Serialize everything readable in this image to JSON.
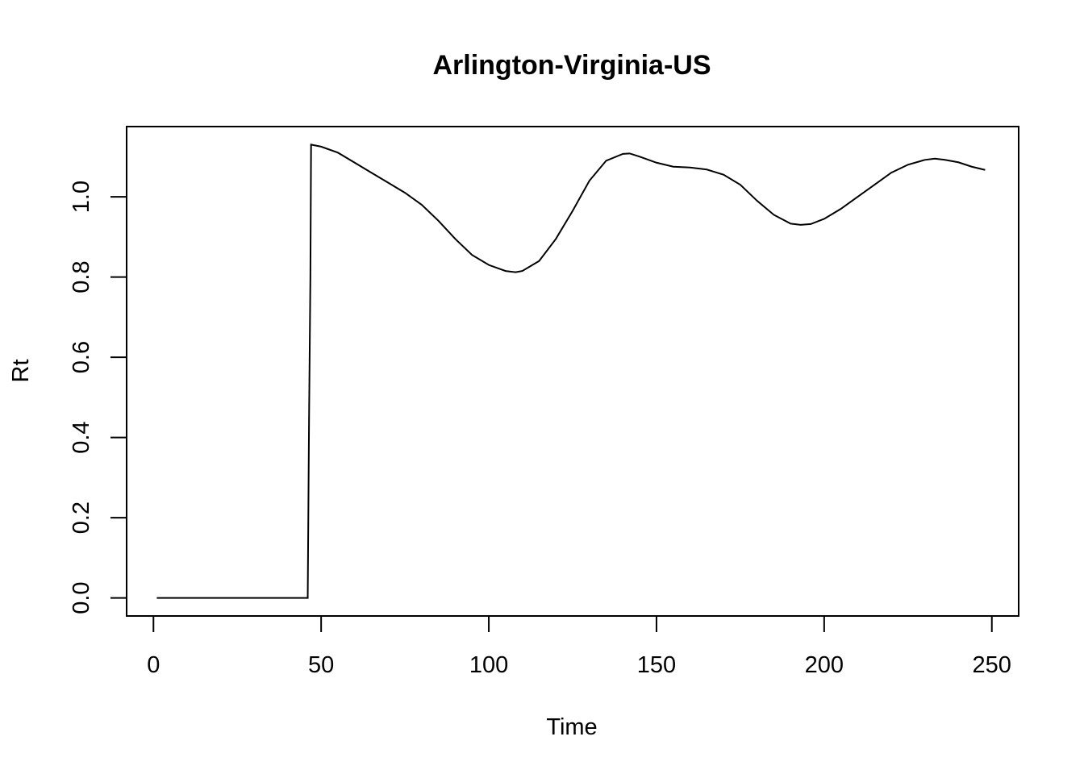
{
  "chart_data": {
    "type": "line",
    "title": "Arlington-Virginia-US",
    "xlabel": "Time",
    "ylabel": "Rt",
    "xlim": [
      -8,
      258
    ],
    "ylim": [
      -0.045,
      1.175
    ],
    "x_ticks": [
      0,
      50,
      100,
      150,
      200,
      250
    ],
    "x_tick_labels": [
      "0",
      "50",
      "100",
      "150",
      "200",
      "250"
    ],
    "y_ticks": [
      0,
      0.2,
      0.4,
      0.6,
      0.8,
      1.0
    ],
    "y_tick_labels": [
      "0.0",
      "0.2",
      "0.4",
      "0.6",
      "0.8",
      "1.0"
    ],
    "grid": false,
    "series": [
      {
        "points": [
          [
            1,
            0
          ],
          [
            10,
            0
          ],
          [
            20,
            0
          ],
          [
            30,
            0
          ],
          [
            40,
            0
          ],
          [
            46,
            0
          ],
          [
            46.4,
            0.45
          ],
          [
            46.8,
            0.8
          ],
          [
            47,
            1.13
          ],
          [
            50,
            1.125
          ],
          [
            55,
            1.11
          ],
          [
            60,
            1.085
          ],
          [
            65,
            1.06
          ],
          [
            70,
            1.035
          ],
          [
            75,
            1.01
          ],
          [
            80,
            0.98
          ],
          [
            85,
            0.94
          ],
          [
            90,
            0.895
          ],
          [
            95,
            0.855
          ],
          [
            100,
            0.83
          ],
          [
            105,
            0.815
          ],
          [
            108,
            0.812
          ],
          [
            110,
            0.815
          ],
          [
            115,
            0.84
          ],
          [
            120,
            0.895
          ],
          [
            125,
            0.965
          ],
          [
            130,
            1.04
          ],
          [
            135,
            1.09
          ],
          [
            140,
            1.107
          ],
          [
            142,
            1.108
          ],
          [
            145,
            1.1
          ],
          [
            150,
            1.085
          ],
          [
            155,
            1.075
          ],
          [
            160,
            1.073
          ],
          [
            165,
            1.068
          ],
          [
            170,
            1.055
          ],
          [
            175,
            1.03
          ],
          [
            180,
            0.99
          ],
          [
            185,
            0.955
          ],
          [
            190,
            0.933
          ],
          [
            193,
            0.93
          ],
          [
            196,
            0.932
          ],
          [
            200,
            0.945
          ],
          [
            205,
            0.97
          ],
          [
            210,
            1.0
          ],
          [
            215,
            1.03
          ],
          [
            220,
            1.06
          ],
          [
            225,
            1.08
          ],
          [
            230,
            1.092
          ],
          [
            233,
            1.095
          ],
          [
            236,
            1.092
          ],
          [
            240,
            1.086
          ],
          [
            244,
            1.075
          ],
          [
            248,
            1.067
          ]
        ]
      }
    ]
  }
}
